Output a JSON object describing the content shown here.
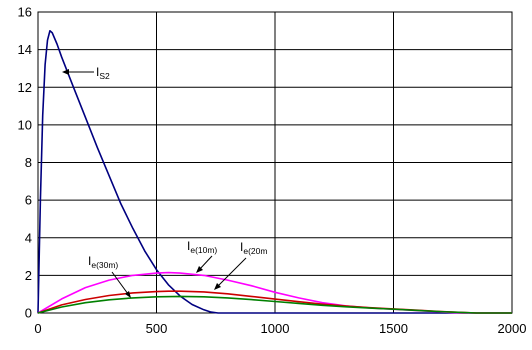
{
  "chart_data": {
    "type": "line",
    "title": "",
    "xlabel": "",
    "ylabel": "",
    "xlim": [
      0,
      2000
    ],
    "ylim": [
      0,
      16
    ],
    "x_ticks": [
      0,
      500,
      1000,
      1500,
      2000
    ],
    "y_ticks": [
      0,
      2,
      4,
      6,
      8,
      10,
      12,
      14,
      16
    ],
    "grid": true,
    "legend": "none",
    "series": [
      {
        "name": "I_S2",
        "color": "#000080",
        "points": [
          [
            0,
            0
          ],
          [
            10,
            6
          ],
          [
            20,
            10.5
          ],
          [
            30,
            13.2
          ],
          [
            40,
            14.5
          ],
          [
            50,
            15
          ],
          [
            60,
            14.9
          ],
          [
            80,
            14.3
          ],
          [
            100,
            13.6
          ],
          [
            150,
            12.0
          ],
          [
            200,
            10.4
          ],
          [
            250,
            8.8
          ],
          [
            300,
            7.3
          ],
          [
            350,
            5.8
          ],
          [
            400,
            4.5
          ],
          [
            450,
            3.3
          ],
          [
            500,
            2.3
          ],
          [
            550,
            1.5
          ],
          [
            600,
            0.9
          ],
          [
            650,
            0.45
          ],
          [
            700,
            0.17
          ],
          [
            730,
            0.05
          ],
          [
            760,
            0
          ],
          [
            2000,
            0
          ]
        ]
      },
      {
        "name": "I_e(10m)",
        "color": "#ff00ff",
        "points": [
          [
            0,
            0
          ],
          [
            100,
            0.75
          ],
          [
            200,
            1.35
          ],
          [
            300,
            1.75
          ],
          [
            400,
            2.0
          ],
          [
            500,
            2.12
          ],
          [
            550,
            2.15
          ],
          [
            600,
            2.12
          ],
          [
            700,
            2.0
          ],
          [
            800,
            1.75
          ],
          [
            900,
            1.45
          ],
          [
            1000,
            1.1
          ],
          [
            1100,
            0.8
          ],
          [
            1200,
            0.55
          ],
          [
            1300,
            0.38
          ],
          [
            1400,
            0.27
          ],
          [
            1500,
            0.2
          ],
          [
            1600,
            0.13
          ],
          [
            1700,
            0.06
          ],
          [
            1750,
            0.02
          ],
          [
            1800,
            0
          ],
          [
            2000,
            0
          ]
        ]
      },
      {
        "name": "I_e(20m)",
        "color": "#cc0000",
        "points": [
          [
            0,
            0
          ],
          [
            100,
            0.43
          ],
          [
            200,
            0.72
          ],
          [
            300,
            0.93
          ],
          [
            400,
            1.07
          ],
          [
            500,
            1.14
          ],
          [
            550,
            1.16
          ],
          [
            600,
            1.16
          ],
          [
            700,
            1.12
          ],
          [
            800,
            1.02
          ],
          [
            900,
            0.88
          ],
          [
            1000,
            0.74
          ],
          [
            1100,
            0.6
          ],
          [
            1200,
            0.47
          ],
          [
            1300,
            0.37
          ],
          [
            1400,
            0.28
          ],
          [
            1500,
            0.22
          ],
          [
            1600,
            0.15
          ],
          [
            1700,
            0.08
          ],
          [
            1800,
            0.02
          ],
          [
            1850,
            0
          ],
          [
            2000,
            0
          ]
        ]
      },
      {
        "name": "I_e(30m)",
        "color": "#008000",
        "points": [
          [
            0,
            0
          ],
          [
            100,
            0.32
          ],
          [
            200,
            0.55
          ],
          [
            300,
            0.7
          ],
          [
            400,
            0.8
          ],
          [
            500,
            0.86
          ],
          [
            600,
            0.88
          ],
          [
            700,
            0.86
          ],
          [
            800,
            0.8
          ],
          [
            900,
            0.71
          ],
          [
            1000,
            0.61
          ],
          [
            1100,
            0.51
          ],
          [
            1200,
            0.41
          ],
          [
            1300,
            0.33
          ],
          [
            1400,
            0.26
          ],
          [
            1500,
            0.2
          ],
          [
            1600,
            0.14
          ],
          [
            1700,
            0.07
          ],
          [
            1800,
            0.02
          ],
          [
            1850,
            0
          ],
          [
            2000,
            0
          ]
        ]
      }
    ],
    "annotations": [
      {
        "main": "I",
        "sub": "S2"
      },
      {
        "main": "I",
        "sub": "e(10m)"
      },
      {
        "main": "I",
        "sub": "e(20m"
      },
      {
        "main": "I",
        "sub": "e(30m)"
      }
    ]
  }
}
